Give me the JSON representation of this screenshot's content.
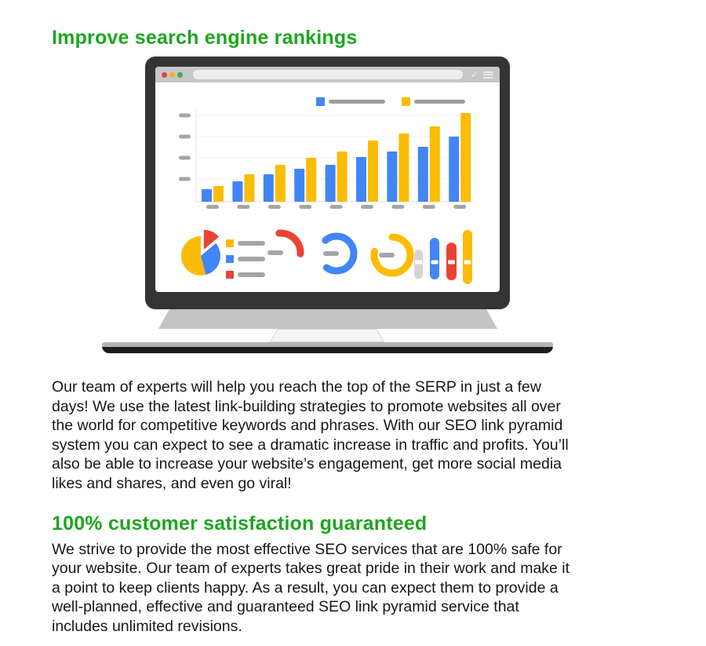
{
  "page": {
    "background": "#ffffff",
    "heading_color": "#1EA51E",
    "text_color": "#171717"
  },
  "sections": [
    {
      "heading": "Improve search engine rankings",
      "paragraph_lines": [
        "Our team of experts will help you reach the top of the SERP in just a few",
        "days! We use the latest link-building strategies to promote websites all over",
        "the world for competitive keywords and phrases. With our SEO link pyramid",
        "system you can expect to see a dramatic increase in traffic and profits. You’ll",
        "also be able to increase your website’s engagement, get more social media",
        "likes and shares, and even go viral!"
      ]
    },
    {
      "heading": "100% customer satisfaction guaranteed",
      "paragraph_lines": [
        "We strive to provide the most effective SEO services that are 100% safe for",
        "your website. Our team of experts takes great pride in their work and make it",
        "a point to keep clients happy. As a result, you can expect them to provide a",
        "well-planned, effective and guaranteed SEO link pyramid service that",
        "includes unlimited revisions."
      ]
    }
  ],
  "illustration": {
    "name": "laptop-with-seo-dashboard",
    "colors": {
      "bezel": "#343437",
      "browser_bar": "#c7c7c7",
      "address_bar": "#edeeec",
      "hinge": "#c4c4c4",
      "touchpad": "#f5f5f4",
      "base_light": "#b4b4b4",
      "base_dark": "#1d1d1d",
      "placeholder_gray": "#a5a5a5"
    },
    "browser": {
      "traffic_lights": [
        "#e0443a",
        "#f2b12e",
        "#45a855"
      ],
      "check_icon": "✓"
    },
    "chart_data": {
      "type": "bar",
      "title": "",
      "note": "placeholder dashboard chart - axis and category labels are gray dashes, no text",
      "categories": [
        "",
        "",
        "",
        "",
        "",
        "",
        "",
        "",
        ""
      ],
      "series": [
        {
          "name": "blue-series",
          "color": "#4285F4",
          "values": [
            16,
            26,
            35,
            42,
            47,
            57,
            64,
            70,
            83
          ]
        },
        {
          "name": "yellow-series",
          "color": "#FBBC05",
          "values": [
            20,
            35,
            47,
            56,
            64,
            78,
            87,
            96,
            113
          ]
        }
      ],
      "ylim": [
        0,
        120
      ],
      "y_tick_count": 4,
      "grid": true,
      "legend_position": "top"
    },
    "widgets": {
      "pie": {
        "slices": [
          {
            "color": "#FBBC05",
            "start": 165,
            "end": 360,
            "exploded": false
          },
          {
            "color": "#4285F4",
            "start": 50,
            "end": 165,
            "exploded": false
          },
          {
            "color": "#EA4335",
            "start": 0,
            "end": 50,
            "exploded": true
          }
        ]
      },
      "list_legend": {
        "colors": [
          "#FBBC05",
          "#4285F4",
          "#EA4335"
        ]
      },
      "gauges": [
        {
          "color": "#EA4335",
          "start": -5,
          "sweep": 98
        },
        {
          "color": "#4285F4",
          "start": -40,
          "sweep": 255
        },
        {
          "color": "#FBBC05",
          "start": 0,
          "sweep": 282
        }
      ],
      "pills": {
        "colors": [
          "#d5d5d5",
          "#4285F4",
          "#EA4335",
          "#FBBC05"
        ],
        "heights": [
          37,
          53,
          48,
          69
        ]
      }
    }
  }
}
